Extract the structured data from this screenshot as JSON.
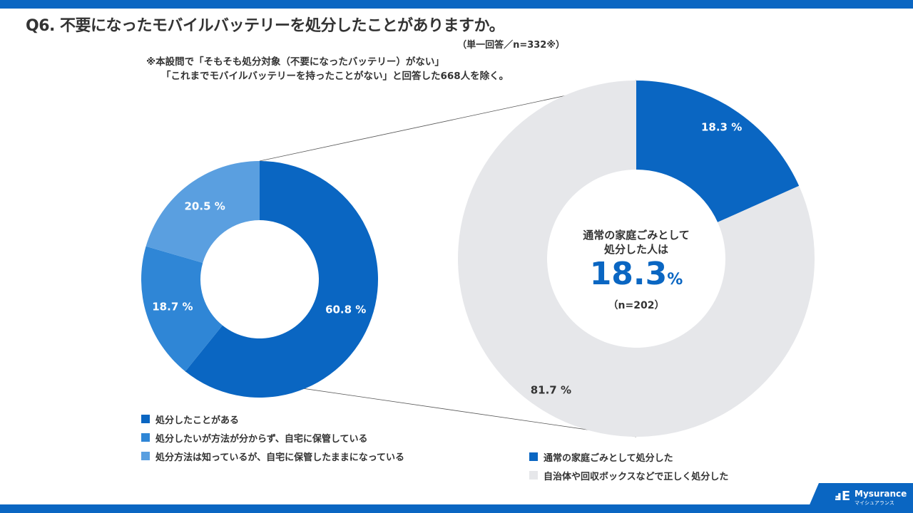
{
  "header": {
    "title": "Q6. 不要になったモバイルバッテリーを処分したことがありますか。",
    "subtitle": "（単一回答／n=332※）",
    "note_line1": "※本設問で「そもそも処分対象（不要になったバッテリー）がない」",
    "note_line2": "「これまでモバイルバッテリーを持ったことがない」と回答した668人を除く。"
  },
  "chart_data": [
    {
      "type": "pie",
      "donut": true,
      "categories": [
        "処分したことがある",
        "処分したいが方法が分からず、自宅に保管している",
        "処分方法は知っているが、自宅に保管したままになっている"
      ],
      "values": [
        60.8,
        18.7,
        20.5
      ],
      "labels": [
        "60.8 %",
        "18.7 %",
        "20.5 %"
      ],
      "colors": [
        "#0a66c2",
        "#2f86d6",
        "#5a9fe0"
      ],
      "legend": "bottom"
    },
    {
      "type": "pie",
      "donut": true,
      "categories": [
        "通常の家庭ごみとして処分した",
        "自治体や回収ボックスなどで正しく処分した"
      ],
      "values": [
        18.3,
        81.7
      ],
      "labels": [
        "18.3 %",
        "81.7 %"
      ],
      "colors": [
        "#0a66c2",
        "#e6e7ea"
      ],
      "legend": "bottom",
      "center": {
        "line1": "通常の家庭ごみとして",
        "line2": "処分した人は",
        "value": "18.3",
        "unit": "%",
        "n": "（n=202）"
      }
    }
  ],
  "logo": {
    "name": "Mysurance",
    "kana": "マイシュアランス"
  }
}
